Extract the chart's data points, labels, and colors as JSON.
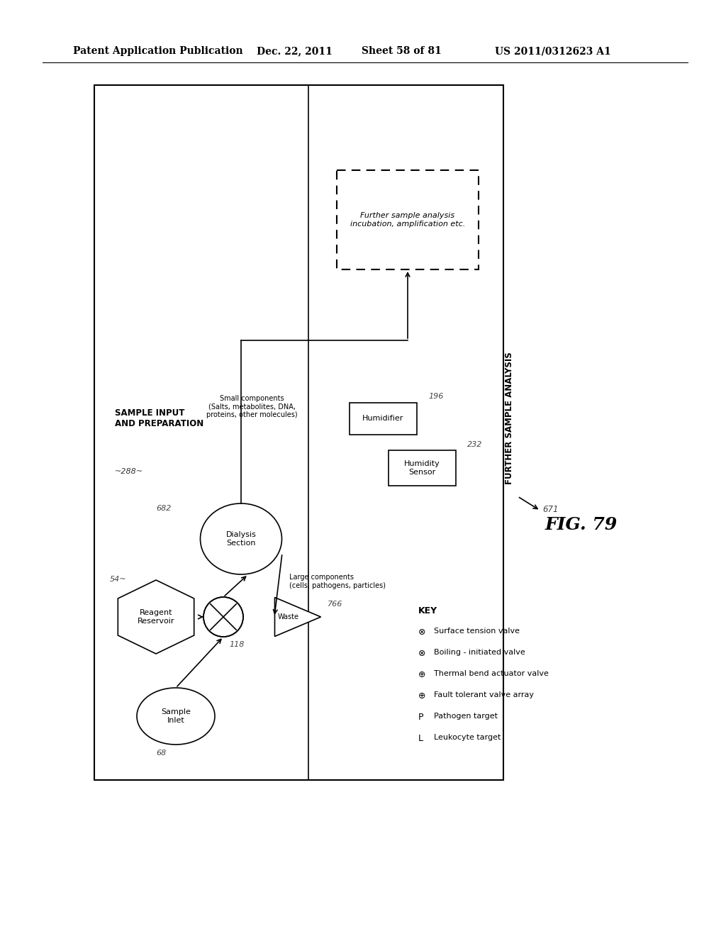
{
  "bg_color": "#ffffff",
  "header_text": "Patent Application Publication",
  "header_date": "Dec. 22, 2011",
  "header_sheet": "Sheet 58 of 81",
  "header_patent": "US 2011/0312623 A1",
  "fig_label": "FIG. 79",
  "key_label": "KEY",
  "key_items": [
    [
      "⊗",
      "Surface tension valve"
    ],
    [
      "⊗",
      "Boiling - initiated valve"
    ],
    [
      "⊕",
      "Thermal bend actuator valve"
    ],
    [
      "⊕",
      "Fault tolerant valve array"
    ],
    [
      "P",
      "Pathogen target"
    ],
    [
      "L",
      "Leukocyte target"
    ]
  ]
}
